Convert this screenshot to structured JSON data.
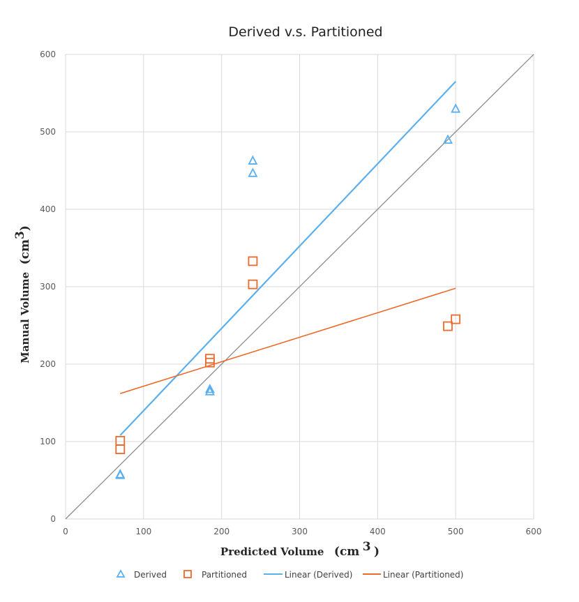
{
  "chart_data": {
    "type": "scatter",
    "title": "Derived v.s. Partitioned",
    "xlabel": "Predicted Volume",
    "ylabel": "Manual Volume",
    "unit": "cm",
    "unit_exp": "3",
    "xlim": [
      0,
      600
    ],
    "ylim": [
      0,
      600
    ],
    "xticks": [
      0,
      100,
      200,
      300,
      400,
      500,
      600
    ],
    "yticks": [
      0,
      100,
      200,
      300,
      400,
      500,
      600
    ],
    "grid": true,
    "legend_position": "bottom",
    "series": [
      {
        "name": "Derived",
        "marker": "triangle",
        "color": "#5AAFEF",
        "points": [
          [
            70,
            58
          ],
          [
            70,
            57
          ],
          [
            185,
            168
          ],
          [
            185,
            165
          ],
          [
            240,
            463
          ],
          [
            240,
            447
          ],
          [
            490,
            490
          ],
          [
            500,
            530
          ]
        ]
      },
      {
        "name": "Partitioned",
        "marker": "square",
        "color": "#ED6A2B",
        "points": [
          [
            70,
            101
          ],
          [
            70,
            90
          ],
          [
            185,
            207
          ],
          [
            185,
            202
          ],
          [
            240,
            333
          ],
          [
            240,
            303
          ],
          [
            490,
            249
          ],
          [
            500,
            258
          ]
        ]
      }
    ],
    "trendlines": [
      {
        "name": "Linear (Derived)",
        "color": "#5AAFEF",
        "points": [
          [
            70,
            108
          ],
          [
            500,
            565
          ]
        ]
      },
      {
        "name": "Linear (Partitioned)",
        "color": "#ED6A2B",
        "points": [
          [
            70,
            162
          ],
          [
            500,
            298
          ]
        ]
      }
    ],
    "reference_line": {
      "color": "#8C8C8C",
      "points": [
        [
          0,
          0
        ],
        [
          600,
          600
        ]
      ]
    }
  }
}
